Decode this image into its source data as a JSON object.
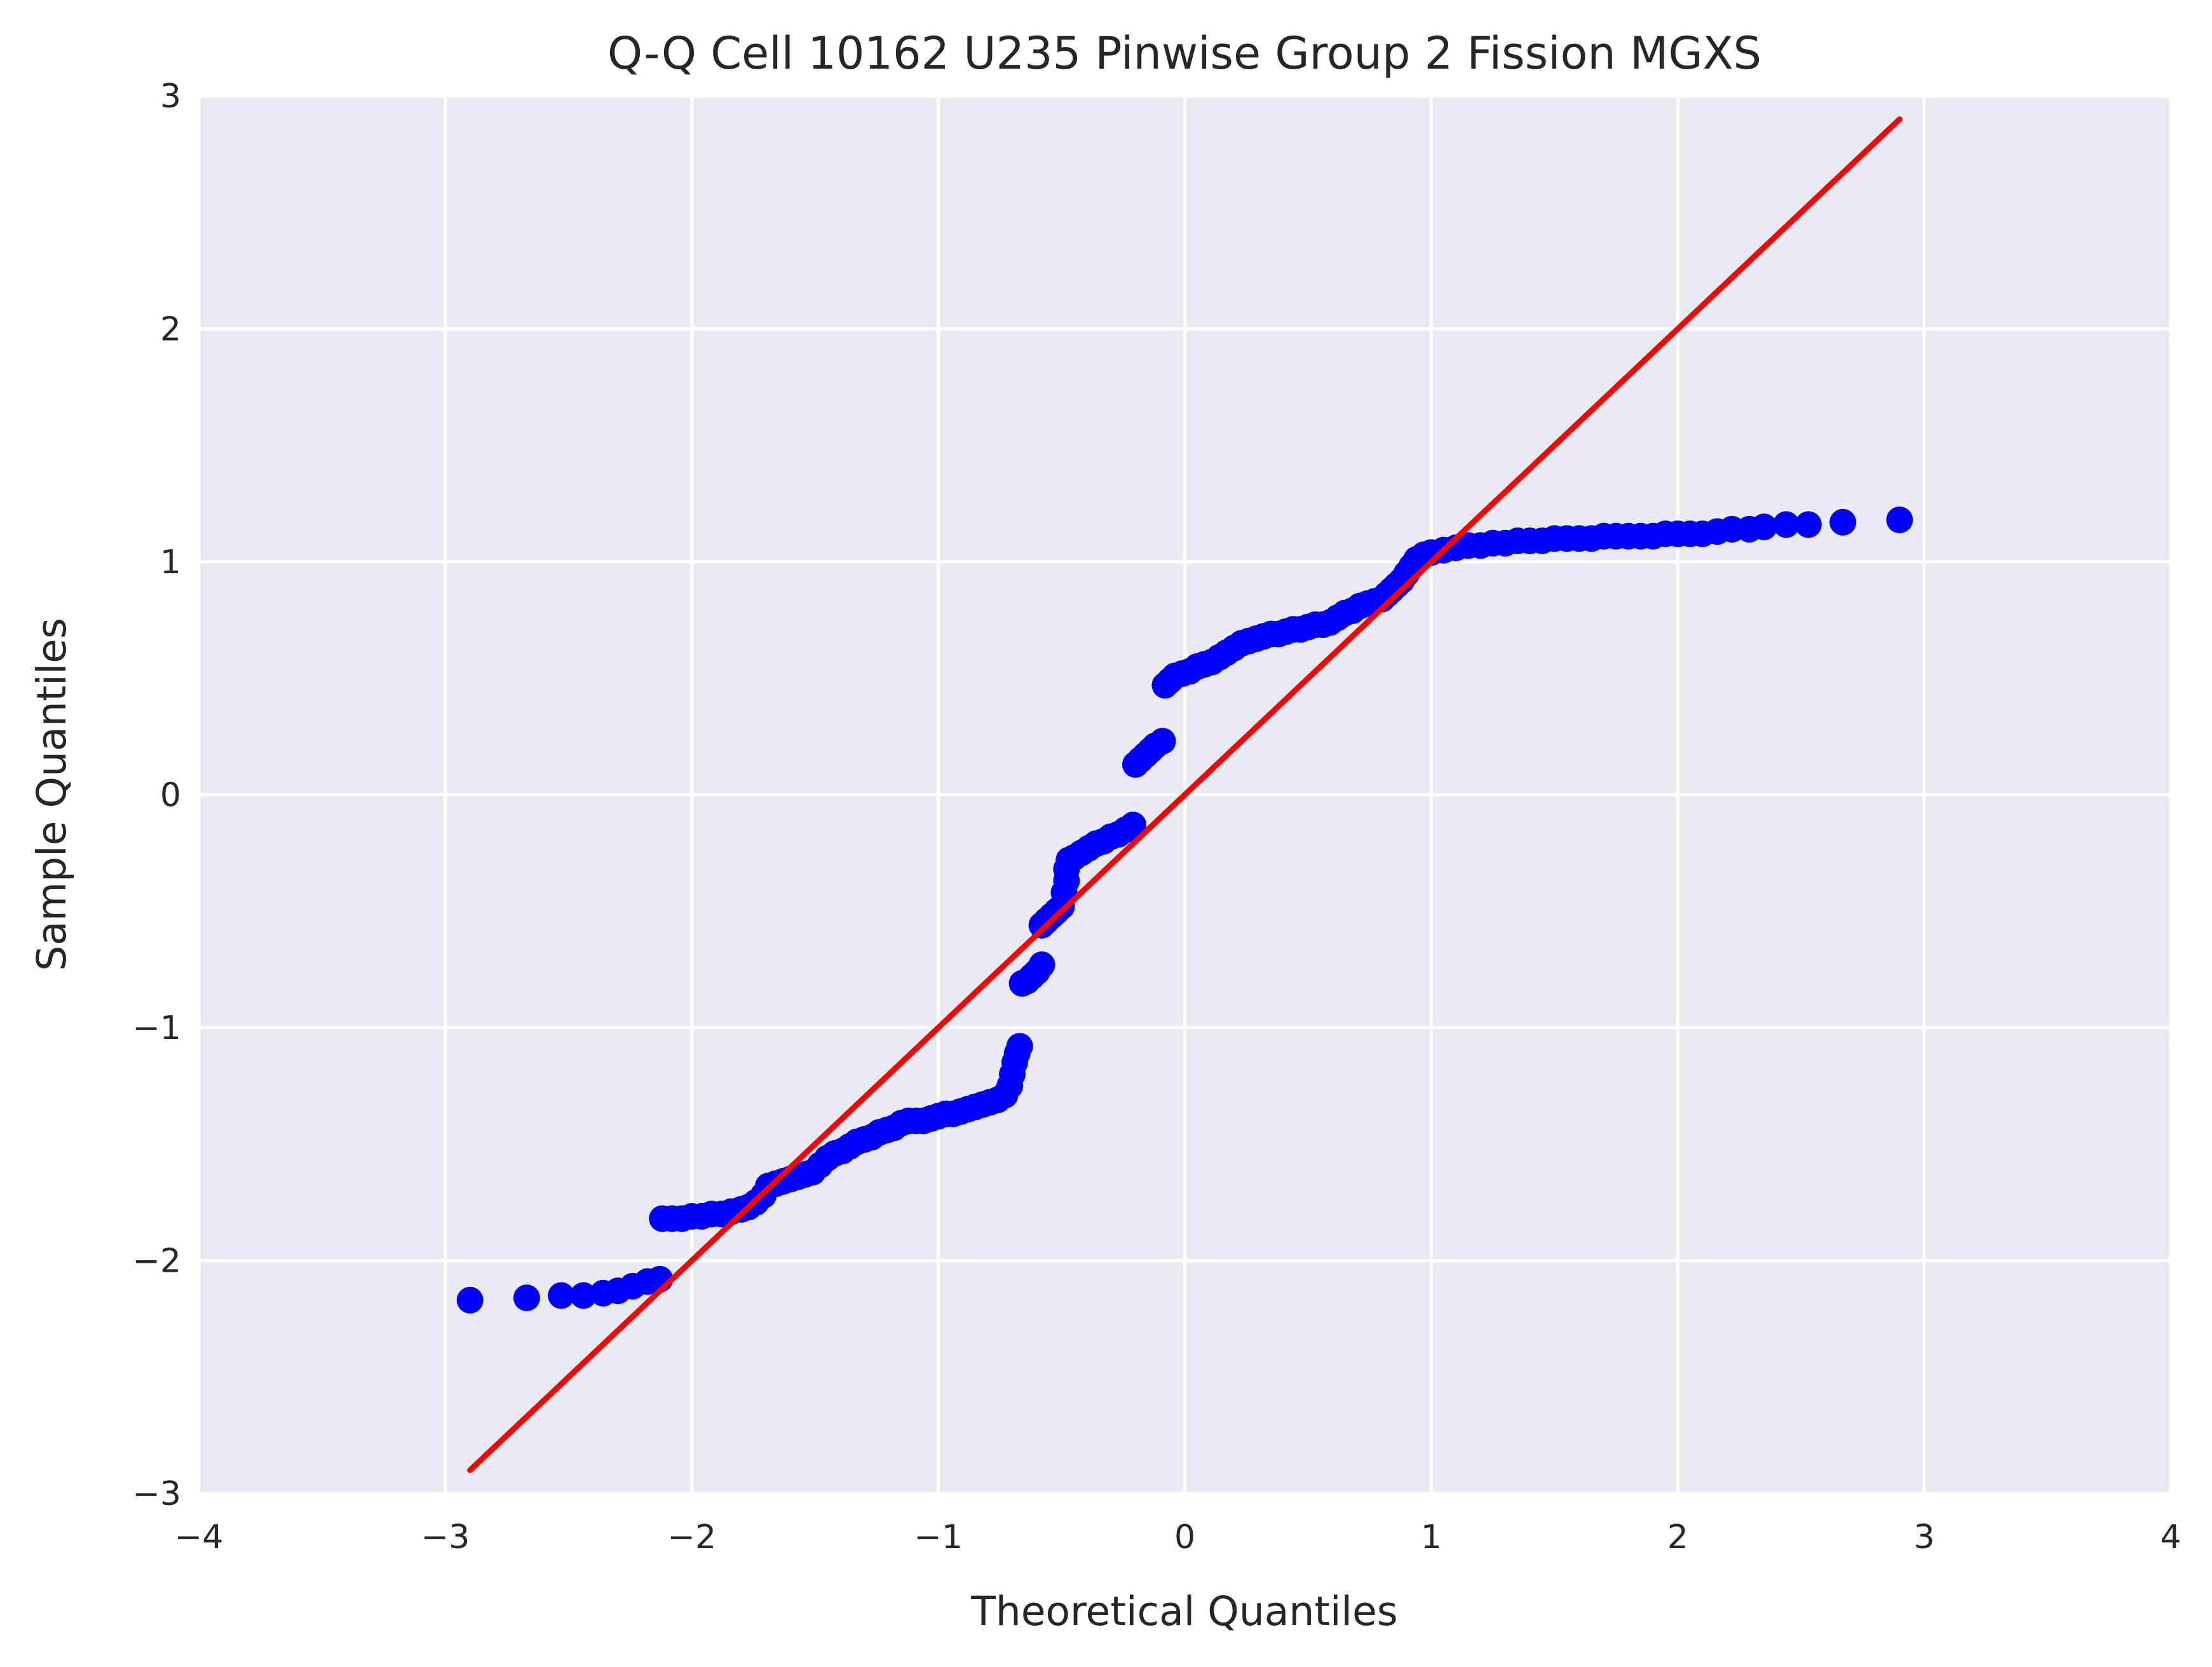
{
  "chart_data": {
    "type": "scatter",
    "title": "Q-Q Cell 10162 U235 Pinwise Group 2 Fission MGXS",
    "xlabel": "Theoretical Quantiles",
    "ylabel": "Sample Quantiles",
    "xlim": [
      -4,
      4
    ],
    "ylim": [
      -3,
      3
    ],
    "xticks": [
      -4,
      -3,
      -2,
      -1,
      0,
      1,
      2,
      3,
      4
    ],
    "yticks": [
      -3,
      -2,
      -1,
      0,
      1,
      2,
      3
    ],
    "xtick_labels": [
      "−4",
      "−3",
      "−2",
      "−1",
      "0",
      "1",
      "2",
      "3",
      "4"
    ],
    "ytick_labels": [
      "−3",
      "−2",
      "−1",
      "0",
      "1",
      "2",
      "3"
    ],
    "grid": true,
    "colors": {
      "background": "#eaeaf2",
      "grid": "#ffffff",
      "points": "#0000ff",
      "line": "#ff0000"
    },
    "reference_line": {
      "x": [
        -2.9,
        2.9
      ],
      "y": [
        -2.9,
        2.9
      ]
    },
    "series": [
      {
        "points": [
          [
            -2.9,
            -2.17
          ],
          [
            -2.67,
            -2.16
          ],
          [
            -2.53,
            -2.15
          ],
          [
            -2.44,
            -2.15
          ],
          [
            -2.36,
            -2.14
          ],
          [
            -2.3,
            -2.13
          ],
          [
            -2.24,
            -2.11
          ],
          [
            -2.18,
            -2.09
          ],
          [
            -2.13,
            -2.08
          ],
          [
            -2.12,
            -1.82
          ],
          [
            -2.08,
            -1.82
          ],
          [
            -2.04,
            -1.82
          ],
          [
            -2.0,
            -1.81
          ],
          [
            -1.96,
            -1.81
          ],
          [
            -1.92,
            -1.8
          ],
          [
            -1.88,
            -1.8
          ],
          [
            -1.84,
            -1.79
          ],
          [
            -1.8,
            -1.78
          ],
          [
            -1.77,
            -1.77
          ],
          [
            -1.74,
            -1.75
          ],
          [
            -1.71,
            -1.72
          ],
          [
            -1.69,
            -1.68
          ],
          [
            -1.66,
            -1.67
          ],
          [
            -1.63,
            -1.66
          ],
          [
            -1.6,
            -1.65
          ],
          [
            -1.57,
            -1.64
          ],
          [
            -1.54,
            -1.63
          ],
          [
            -1.51,
            -1.62
          ],
          [
            -1.48,
            -1.59
          ],
          [
            -1.45,
            -1.56
          ],
          [
            -1.42,
            -1.54
          ],
          [
            -1.39,
            -1.53
          ],
          [
            -1.36,
            -1.51
          ],
          [
            -1.33,
            -1.49
          ],
          [
            -1.3,
            -1.48
          ],
          [
            -1.27,
            -1.47
          ],
          [
            -1.24,
            -1.45
          ],
          [
            -1.21,
            -1.44
          ],
          [
            -1.18,
            -1.43
          ],
          [
            -1.15,
            -1.41
          ],
          [
            -1.12,
            -1.4
          ],
          [
            -1.09,
            -1.4
          ],
          [
            -1.06,
            -1.4
          ],
          [
            -1.03,
            -1.39
          ],
          [
            -1.0,
            -1.38
          ],
          [
            -0.97,
            -1.37
          ],
          [
            -0.94,
            -1.37
          ],
          [
            -0.91,
            -1.36
          ],
          [
            -0.88,
            -1.35
          ],
          [
            -0.85,
            -1.34
          ],
          [
            -0.82,
            -1.33
          ],
          [
            -0.79,
            -1.32
          ],
          [
            -0.76,
            -1.31
          ],
          [
            -0.73,
            -1.29
          ],
          [
            -0.71,
            -1.25
          ],
          [
            -0.7,
            -1.2
          ],
          [
            -0.69,
            -1.15
          ],
          [
            -0.68,
            -1.11
          ],
          [
            -0.67,
            -1.08
          ],
          [
            -0.66,
            -0.81
          ],
          [
            -0.64,
            -0.8
          ],
          [
            -0.62,
            -0.78
          ],
          [
            -0.6,
            -0.76
          ],
          [
            -0.58,
            -0.73
          ],
          [
            -0.58,
            -0.56
          ],
          [
            -0.56,
            -0.54
          ],
          [
            -0.54,
            -0.52
          ],
          [
            -0.52,
            -0.5
          ],
          [
            -0.5,
            -0.48
          ],
          [
            -0.49,
            -0.42
          ],
          [
            -0.48,
            -0.37
          ],
          [
            -0.48,
            -0.32
          ],
          [
            -0.47,
            -0.28
          ],
          [
            -0.45,
            -0.27
          ],
          [
            -0.42,
            -0.25
          ],
          [
            -0.39,
            -0.23
          ],
          [
            -0.36,
            -0.21
          ],
          [
            -0.33,
            -0.2
          ],
          [
            -0.3,
            -0.18
          ],
          [
            -0.27,
            -0.17
          ],
          [
            -0.24,
            -0.15
          ],
          [
            -0.21,
            -0.13
          ],
          [
            -0.2,
            0.13
          ],
          [
            -0.18,
            0.15
          ],
          [
            -0.16,
            0.17
          ],
          [
            -0.14,
            0.19
          ],
          [
            -0.12,
            0.21
          ],
          [
            -0.09,
            0.23
          ],
          [
            -0.08,
            0.47
          ],
          [
            -0.06,
            0.49
          ],
          [
            -0.04,
            0.51
          ],
          [
            -0.01,
            0.52
          ],
          [
            0.02,
            0.53
          ],
          [
            0.05,
            0.55
          ],
          [
            0.08,
            0.56
          ],
          [
            0.11,
            0.57
          ],
          [
            0.14,
            0.59
          ],
          [
            0.17,
            0.61
          ],
          [
            0.2,
            0.63
          ],
          [
            0.23,
            0.65
          ],
          [
            0.26,
            0.66
          ],
          [
            0.29,
            0.67
          ],
          [
            0.32,
            0.68
          ],
          [
            0.35,
            0.69
          ],
          [
            0.38,
            0.69
          ],
          [
            0.41,
            0.7
          ],
          [
            0.44,
            0.71
          ],
          [
            0.47,
            0.71
          ],
          [
            0.5,
            0.72
          ],
          [
            0.53,
            0.73
          ],
          [
            0.56,
            0.73
          ],
          [
            0.59,
            0.74
          ],
          [
            0.62,
            0.76
          ],
          [
            0.65,
            0.78
          ],
          [
            0.68,
            0.79
          ],
          [
            0.71,
            0.81
          ],
          [
            0.74,
            0.82
          ],
          [
            0.77,
            0.83
          ],
          [
            0.8,
            0.84
          ],
          [
            0.82,
            0.86
          ],
          [
            0.84,
            0.88
          ],
          [
            0.86,
            0.9
          ],
          [
            0.88,
            0.92
          ],
          [
            0.9,
            0.95
          ],
          [
            0.92,
            0.98
          ],
          [
            0.94,
            1.01
          ],
          [
            0.97,
            1.03
          ],
          [
            1.0,
            1.04
          ],
          [
            1.05,
            1.05
          ],
          [
            1.1,
            1.06
          ],
          [
            1.15,
            1.07
          ],
          [
            1.2,
            1.07
          ],
          [
            1.25,
            1.08
          ],
          [
            1.3,
            1.08
          ],
          [
            1.35,
            1.09
          ],
          [
            1.4,
            1.09
          ],
          [
            1.45,
            1.09
          ],
          [
            1.5,
            1.1
          ],
          [
            1.55,
            1.1
          ],
          [
            1.6,
            1.1
          ],
          [
            1.65,
            1.1
          ],
          [
            1.7,
            1.11
          ],
          [
            1.75,
            1.11
          ],
          [
            1.8,
            1.11
          ],
          [
            1.85,
            1.11
          ],
          [
            1.9,
            1.11
          ],
          [
            1.95,
            1.12
          ],
          [
            2.0,
            1.12
          ],
          [
            2.05,
            1.12
          ],
          [
            2.1,
            1.12
          ],
          [
            2.16,
            1.13
          ],
          [
            2.22,
            1.14
          ],
          [
            2.29,
            1.14
          ],
          [
            2.35,
            1.15
          ],
          [
            2.44,
            1.16
          ],
          [
            2.53,
            1.16
          ],
          [
            2.67,
            1.17
          ],
          [
            2.9,
            1.18
          ]
        ]
      }
    ]
  }
}
